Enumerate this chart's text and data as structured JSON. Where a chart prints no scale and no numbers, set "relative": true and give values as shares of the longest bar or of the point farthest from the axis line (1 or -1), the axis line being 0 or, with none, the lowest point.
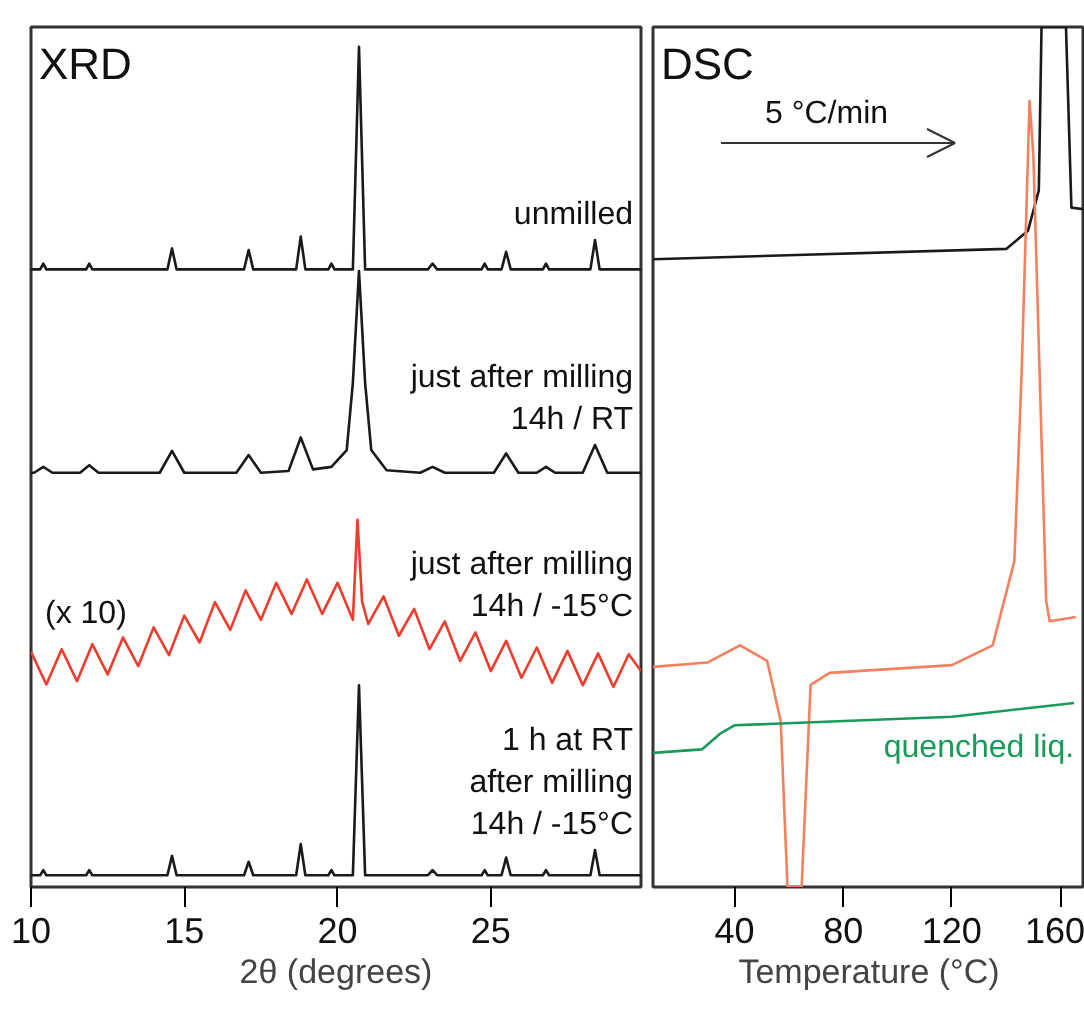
{
  "chart_data": [
    {
      "type": "line",
      "title": "XRD",
      "xlabel": "2θ (degrees)",
      "relative": true,
      "xlim": [
        10,
        29.9
      ],
      "xticks": [
        10,
        15,
        20,
        25
      ],
      "line_style": "solid",
      "annotations": [
        "(x 10)"
      ],
      "series": [
        {
          "name": "unmilled",
          "color": "#1a1a1a",
          "x": [
            10,
            10.3,
            10.4,
            10.5,
            11.8,
            11.9,
            12,
            14.45,
            14.6,
            14.75,
            16.95,
            17.1,
            17.25,
            18.65,
            18.8,
            18.95,
            19.7,
            19.8,
            19.9,
            20.5,
            20.7,
            20.9,
            22.95,
            23.1,
            23.25,
            24.7,
            24.8,
            24.9,
            25.35,
            25.5,
            25.65,
            26.7,
            26.8,
            26.9,
            28.25,
            28.4,
            28.55,
            29.9
          ],
          "values": [
            0.735,
            0.735,
            0.742,
            0.735,
            0.735,
            0.742,
            0.735,
            0.735,
            0.76,
            0.735,
            0.735,
            0.758,
            0.735,
            0.735,
            0.774,
            0.735,
            0.735,
            0.742,
            0.735,
            0.735,
            1,
            0.735,
            0.735,
            0.742,
            0.735,
            0.735,
            0.742,
            0.735,
            0.735,
            0.756,
            0.735,
            0.735,
            0.742,
            0.735,
            0.735,
            0.77,
            0.735,
            0.735
          ]
        },
        {
          "name": "just after milling\n14h / RT",
          "color": "#1a1a1a",
          "x": [
            10,
            10.1,
            10.4,
            10.7,
            11.6,
            11.9,
            12.2,
            14.2,
            14.6,
            15.0,
            16.7,
            17.1,
            17.5,
            18.4,
            18.8,
            19.2,
            19.8,
            20.3,
            20.5,
            20.7,
            20.9,
            21.1,
            21.6,
            22.7,
            23.1,
            23.5,
            25.1,
            25.5,
            25.9,
            26.5,
            26.8,
            27.1,
            28.0,
            28.4,
            28.8,
            29.9
          ],
          "values": [
            0.493,
            0.493,
            0.5,
            0.493,
            0.493,
            0.502,
            0.493,
            0.493,
            0.519,
            0.493,
            0.493,
            0.514,
            0.493,
            0.495,
            0.535,
            0.497,
            0.5,
            0.52,
            0.6,
            0.733,
            0.6,
            0.52,
            0.496,
            0.493,
            0.5,
            0.493,
            0.493,
            0.516,
            0.493,
            0.493,
            0.5,
            0.493,
            0.493,
            0.526,
            0.493,
            0.493
          ]
        },
        {
          "name": "just after milling\n14h / -15°C",
          "color": "#f03c2c",
          "x": [
            10,
            10.5,
            11,
            11.5,
            12,
            12.5,
            13,
            13.5,
            14,
            14.5,
            15,
            15.5,
            16,
            16.5,
            17,
            17.5,
            18,
            18.5,
            19,
            19.5,
            20,
            20.5,
            20.65,
            20.8,
            21,
            21.5,
            22,
            22.5,
            23,
            23.5,
            24,
            24.5,
            25,
            25.5,
            26,
            26.5,
            27,
            27.5,
            28,
            28.5,
            29,
            29.5,
            29.9
          ],
          "values": [
            0.28,
            0.241,
            0.283,
            0.245,
            0.289,
            0.253,
            0.297,
            0.263,
            0.309,
            0.276,
            0.323,
            0.291,
            0.339,
            0.306,
            0.353,
            0.318,
            0.362,
            0.325,
            0.366,
            0.325,
            0.362,
            0.318,
            0.437,
            0.34,
            0.313,
            0.346,
            0.299,
            0.331,
            0.283,
            0.316,
            0.269,
            0.303,
            0.257,
            0.293,
            0.249,
            0.285,
            0.243,
            0.281,
            0.24,
            0.278,
            0.238,
            0.277,
            0.257
          ]
        },
        {
          "name": "1 h at RT\nafter milling\n14h / -15°C",
          "color": "#1a1a1a",
          "x": [
            10,
            10.3,
            10.4,
            10.5,
            11.8,
            11.9,
            12,
            14.45,
            14.6,
            14.75,
            16.95,
            17.1,
            17.25,
            18.65,
            18.8,
            18.95,
            19.7,
            19.8,
            19.9,
            20.5,
            20.7,
            20.9,
            22.95,
            23.1,
            23.25,
            24.7,
            24.8,
            24.9,
            25.35,
            25.5,
            25.65,
            26.7,
            26.8,
            26.9,
            28.25,
            28.4,
            28.55,
            29.9
          ],
          "values": [
            0.014,
            0.014,
            0.02,
            0.014,
            0.014,
            0.02,
            0.014,
            0.014,
            0.037,
            0.014,
            0.014,
            0.03,
            0.014,
            0.014,
            0.051,
            0.014,
            0.014,
            0.02,
            0.014,
            0.014,
            0.24,
            0.014,
            0.014,
            0.02,
            0.014,
            0.014,
            0.02,
            0.014,
            0.014,
            0.035,
            0.014,
            0.014,
            0.02,
            0.014,
            0.014,
            0.044,
            0.014,
            0.014
          ]
        }
      ]
    },
    {
      "type": "line",
      "title": "DSC",
      "xlabel": "Temperature (°C)",
      "relative": true,
      "xlim": [
        10,
        169
      ],
      "xticks": [
        40,
        80,
        120,
        160
      ],
      "line_style": "solid",
      "annotations": [
        "5 °C/min"
      ],
      "series": [
        {
          "color": "#1a1a1a",
          "x": [
            10,
            140,
            148,
            152,
            153,
            162,
            164,
            169
          ],
          "values": [
            0.73,
            0.742,
            0.763,
            0.81,
            1,
            1,
            0.79,
            0.788
          ]
        },
        {
          "color": "#f4805f",
          "x": [
            10,
            30,
            42,
            52,
            57,
            59.5,
            64.7,
            68,
            75,
            120,
            135,
            143,
            145.7,
            148.6,
            150,
            154.7,
            156,
            165.6
          ],
          "values": [
            0.256,
            0.261,
            0.281,
            0.263,
            0.193,
            0,
            0,
            0.235,
            0.249,
            0.258,
            0.281,
            0.379,
            0.6,
            0.914,
            0.85,
            0.333,
            0.309,
            0.314
          ]
        },
        {
          "name": "quenched liq.",
          "color": "#1a9a5a",
          "x": [
            10,
            28,
            35,
            40,
            120,
            165
          ],
          "values": [
            0.156,
            0.16,
            0.179,
            0.188,
            0.198,
            0.214
          ]
        }
      ]
    }
  ]
}
